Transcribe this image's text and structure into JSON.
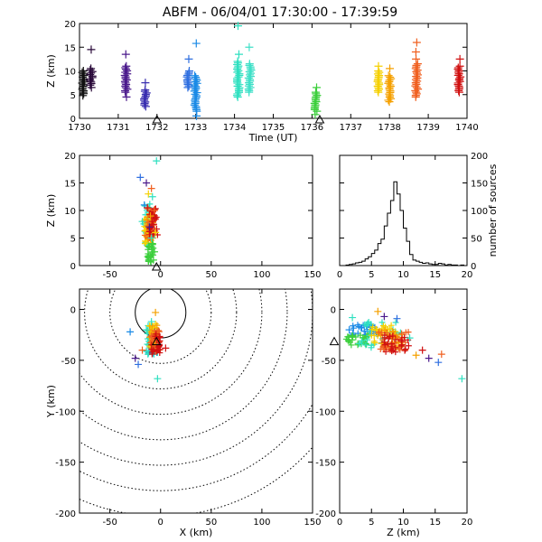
{
  "title": "ABFM - 06/04/01 17:30:00 - 17:39:59",
  "colors": {
    "axis": "#000000",
    "background": "#ffffff",
    "ring": "#000000"
  },
  "station_marker": "triangle-icon",
  "chart_data": [
    {
      "id": "time-height",
      "type": "scatter",
      "xlabel": "Time (UT)",
      "ylabel": "Z (km)",
      "xlim": [
        1730,
        1740
      ],
      "ylim": [
        0,
        20
      ],
      "xticks": [
        1730,
        1731,
        1732,
        1733,
        1734,
        1735,
        1736,
        1737,
        1738,
        1739,
        1740
      ],
      "yticks": [
        0,
        5,
        10,
        15,
        20
      ],
      "station_x": [
        1732.0,
        1736.2
      ],
      "groups": [
        {
          "t": 1730.1,
          "color": "#111111",
          "zmin": 5.5,
          "zmax": 10.0,
          "outliers": [
            4.8,
            5.2
          ]
        },
        {
          "t": 1730.3,
          "color": "#2a0a3a",
          "zmin": 7.0,
          "zmax": 10.5,
          "outliers": [
            14.5,
            6.5
          ]
        },
        {
          "t": 1731.2,
          "color": "#4b1a8c",
          "zmin": 5.5,
          "zmax": 11.0,
          "outliers": [
            13.5,
            4.5
          ]
        },
        {
          "t": 1731.7,
          "color": "#3a2fb0",
          "zmin": 2.5,
          "zmax": 6.0,
          "outliers": [
            7.5
          ]
        },
        {
          "t": 1732.8,
          "color": "#2f6fe0",
          "zmin": 6.5,
          "zmax": 10.0,
          "outliers": [
            12.5
          ]
        },
        {
          "t": 1733.0,
          "color": "#1a8ae6",
          "zmin": 1.5,
          "zmax": 9.0,
          "outliers": [
            15.8,
            0.5
          ]
        },
        {
          "t": 1734.1,
          "color": "#2fe0c0",
          "zmin": 4.5,
          "zmax": 12.0,
          "outliers": [
            19.5,
            13.5
          ]
        },
        {
          "t": 1734.4,
          "color": "#40e0c8",
          "zmin": 5.5,
          "zmax": 11.5,
          "outliers": [
            15.0
          ]
        },
        {
          "t": 1736.1,
          "color": "#3ccf3c",
          "zmin": 1.5,
          "zmax": 5.5,
          "outliers": [
            0.8,
            6.5
          ]
        },
        {
          "t": 1737.7,
          "color": "#f5d000",
          "zmin": 5.5,
          "zmax": 10.0,
          "outliers": [
            11.0
          ]
        },
        {
          "t": 1738.0,
          "color": "#f5a000",
          "zmin": 3.5,
          "zmax": 9.0,
          "outliers": [
            10.5
          ]
        },
        {
          "t": 1738.7,
          "color": "#f06020",
          "zmin": 4.5,
          "zmax": 11.5,
          "outliers": [
            16.0,
            14.0,
            12.5
          ]
        },
        {
          "t": 1739.8,
          "color": "#d01010",
          "zmin": 5.5,
          "zmax": 11.0,
          "outliers": [
            12.5
          ]
        }
      ]
    },
    {
      "id": "x-z",
      "type": "scatter",
      "ylabel": "Z (km)",
      "xlim": [
        -80,
        150
      ],
      "ylim": [
        0,
        20
      ],
      "xticks": [
        -50,
        0,
        50,
        100,
        150
      ],
      "yticks": [
        0,
        5,
        10,
        15,
        20
      ],
      "station_x": [
        -4
      ],
      "points": [
        {
          "x": -4,
          "z": 19,
          "color": "#2fe0c0"
        },
        {
          "x": -20,
          "z": 16,
          "color": "#2f6fe0"
        },
        {
          "x": -14,
          "z": 15,
          "color": "#4b1a8c"
        },
        {
          "x": -9,
          "z": 14,
          "color": "#f06020"
        },
        {
          "x": -12,
          "z": 13,
          "color": "#f5d000"
        },
        {
          "x": -8,
          "z": 12.5,
          "color": "#2fe0c0"
        },
        {
          "x": -16,
          "z": 11,
          "color": "#1a8ae6"
        },
        {
          "x": -13,
          "z": 10.5,
          "color": "#d01010"
        },
        {
          "x": -6,
          "z": 10,
          "color": "#f06020"
        },
        {
          "x": -10,
          "z": 9,
          "color": "#f5a000"
        },
        {
          "x": -18,
          "z": 8,
          "color": "#2fe0c0"
        },
        {
          "x": -7,
          "z": 7.5,
          "color": "#d01010"
        },
        {
          "x": -11,
          "z": 7,
          "color": "#4b1a8c"
        },
        {
          "x": -5,
          "z": 6,
          "color": "#f5d000"
        },
        {
          "x": -15,
          "z": 5.5,
          "color": "#f06020"
        },
        {
          "x": -9,
          "z": 5,
          "color": "#2fe0c0"
        },
        {
          "x": -8,
          "z": 4,
          "color": "#3ccf3c"
        },
        {
          "x": -12,
          "z": 3.5,
          "color": "#3ccf3c"
        },
        {
          "x": -6,
          "z": 2.5,
          "color": "#3ccf3c"
        },
        {
          "x": -10,
          "z": 1.5,
          "color": "#3ccf3c"
        },
        {
          "x": -7,
          "z": 1,
          "color": "#3ccf3c"
        }
      ],
      "clusters": [
        {
          "color": "#2fe0c0",
          "xmin": -17,
          "xmax": -8,
          "zmin": 3.0,
          "zmax": 11.5
        },
        {
          "color": "#f5d000",
          "xmin": -16,
          "xmax": -9,
          "zmin": 4.0,
          "zmax": 9.0
        },
        {
          "color": "#f5a000",
          "xmin": -15,
          "xmax": -7,
          "zmin": 4.5,
          "zmax": 10.0
        },
        {
          "color": "#f06020",
          "xmin": -13,
          "xmax": -5,
          "zmin": 5.0,
          "zmax": 10.5
        },
        {
          "color": "#d01010",
          "xmin": -11,
          "xmax": -3,
          "zmin": 5.5,
          "zmax": 10.5
        },
        {
          "color": "#3ccf3c",
          "xmin": -13,
          "xmax": -7,
          "zmin": 0.5,
          "zmax": 4.0
        }
      ]
    },
    {
      "id": "histogram",
      "type": "bar",
      "xlabel": "",
      "ylabel": "number of sources",
      "xlim": [
        0,
        20
      ],
      "ylim": [
        0,
        200
      ],
      "xticks": [
        0,
        5,
        10,
        15,
        20
      ],
      "yticks": [
        0,
        50,
        100,
        150,
        200
      ],
      "bin_width": 0.5,
      "bin_start": 0,
      "counts": [
        0,
        0,
        1,
        2,
        3,
        5,
        6,
        8,
        12,
        16,
        22,
        28,
        40,
        48,
        72,
        95,
        118,
        152,
        130,
        100,
        68,
        44,
        20,
        10,
        8,
        6,
        4,
        5,
        3,
        2,
        2,
        4,
        3,
        1,
        2,
        1,
        1,
        0,
        1,
        0
      ]
    },
    {
      "id": "x-y",
      "type": "scatter",
      "xlabel": "X (km)",
      "ylabel": "Y (km)",
      "xlim": [
        -80,
        150
      ],
      "ylim": [
        -200,
        20
      ],
      "xticks": [
        -50,
        0,
        50,
        100,
        150
      ],
      "yticks": [
        -200,
        -150,
        -100,
        -50,
        0
      ],
      "station": {
        "x": -4,
        "y": -32
      },
      "ring_center": {
        "x": 0,
        "y": -3
      },
      "ring_radii_km": [
        25,
        50,
        75,
        100,
        125,
        150,
        175,
        200
      ],
      "points": [
        {
          "x": -5,
          "y": -3,
          "color": "#f5a000"
        },
        {
          "x": -9,
          "y": -12,
          "color": "#2fe0c0"
        },
        {
          "x": -30,
          "y": -22,
          "color": "#1a8ae6"
        },
        {
          "x": -18,
          "y": -40,
          "color": "#f06020"
        },
        {
          "x": -25,
          "y": -48,
          "color": "#4b1a8c"
        },
        {
          "x": -22,
          "y": -54,
          "color": "#2f6fe0"
        },
        {
          "x": -3,
          "y": -68,
          "color": "#2fe0c0"
        },
        {
          "x": 5,
          "y": -38,
          "color": "#d01010"
        },
        {
          "x": -14,
          "y": -20,
          "color": "#2fe0c0"
        }
      ],
      "clusters": [
        {
          "color": "#1a8ae6",
          "xmin": -12,
          "xmax": -3,
          "ymin": -45,
          "ymax": -18
        },
        {
          "color": "#2fe0c0",
          "xmin": -14,
          "xmax": -2,
          "ymin": -48,
          "ymax": -15
        },
        {
          "color": "#f5d000",
          "xmin": -12,
          "xmax": -3,
          "ymin": -40,
          "ymax": -12
        },
        {
          "color": "#f5a000",
          "xmin": -11,
          "xmax": -2,
          "ymin": -38,
          "ymax": -15
        },
        {
          "color": "#f06020",
          "xmin": -10,
          "xmax": -1,
          "ymin": -42,
          "ymax": -20
        },
        {
          "color": "#d01010",
          "xmin": -9,
          "xmax": 0,
          "ymin": -44,
          "ymax": -24
        }
      ]
    },
    {
      "id": "z-y",
      "type": "scatter",
      "xlabel": "Z (km)",
      "xlim": [
        0,
        20
      ],
      "ylim": [
        -200,
        20
      ],
      "xticks": [
        0,
        5,
        10,
        15,
        20
      ],
      "yticks": [
        -200,
        -150,
        -100,
        -50,
        0
      ],
      "station": {
        "z": 0,
        "y": -32
      },
      "points": [
        {
          "z": 2,
          "y": -8,
          "color": "#2fe0c0"
        },
        {
          "z": 6,
          "y": -2,
          "color": "#f5a000"
        },
        {
          "z": 7,
          "y": -7,
          "color": "#4b1a8c"
        },
        {
          "z": 9,
          "y": -9,
          "color": "#2f6fe0"
        },
        {
          "z": 11,
          "y": -28,
          "color": "#2fe0c0"
        },
        {
          "z": 13,
          "y": -40,
          "color": "#d01010"
        },
        {
          "z": 14,
          "y": -48,
          "color": "#4b1a8c"
        },
        {
          "z": 16,
          "y": -44,
          "color": "#f06020"
        },
        {
          "z": 15.5,
          "y": -52,
          "color": "#2f6fe0"
        },
        {
          "z": 19.2,
          "y": -68,
          "color": "#2fe0c0"
        },
        {
          "z": 12,
          "y": -45,
          "color": "#f5a000"
        },
        {
          "z": 1.5,
          "y": -20,
          "color": "#1a8ae6"
        }
      ],
      "clusters": [
        {
          "color": "#1a8ae6",
          "xmin": 2,
          "xmax": 6,
          "ymin": -25,
          "ymax": -15
        },
        {
          "color": "#3ccf3c",
          "xmin": 1,
          "xmax": 5,
          "ymin": -35,
          "ymax": -25
        },
        {
          "color": "#2fe0c0",
          "xmin": 3,
          "xmax": 10,
          "ymin": -38,
          "ymax": -12
        },
        {
          "color": "#f5d000",
          "xmin": 5,
          "xmax": 9,
          "ymin": -35,
          "ymax": -15
        },
        {
          "color": "#f5a000",
          "xmin": 6,
          "xmax": 10,
          "ymin": -38,
          "ymax": -20
        },
        {
          "color": "#f06020",
          "xmin": 6,
          "xmax": 11,
          "ymin": -40,
          "ymax": -22
        },
        {
          "color": "#d01010",
          "xmin": 7,
          "xmax": 11,
          "ymin": -42,
          "ymax": -25
        }
      ]
    }
  ]
}
